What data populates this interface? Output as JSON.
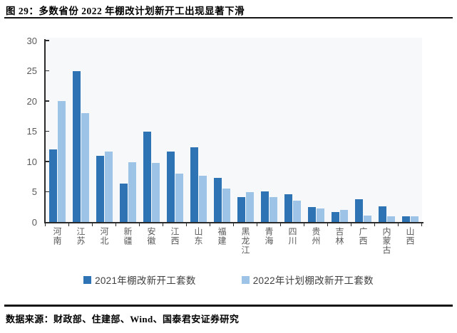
{
  "header": {
    "title": "图 29：多数省份 2022 年棚改计划新开工出现显著下滑"
  },
  "footer": {
    "source": "数据来源：财政部、住建部、Wind、国泰君安证券研究"
  },
  "colors": {
    "series_2021": "#2e74b5",
    "series_2022": "#9dc3e6",
    "plot_background": "#f7f8fa",
    "axis": "#2b2b2b",
    "tick_label": "#595959",
    "rule": "#141414"
  },
  "chart_data": {
    "type": "bar",
    "title": "",
    "xlabel": "",
    "ylabel": "",
    "ylim": [
      0,
      30
    ],
    "yticks": [
      0,
      5,
      10,
      15,
      20,
      25,
      30
    ],
    "grid": false,
    "legend_position": "bottom",
    "categories": [
      "河南",
      "江苏",
      "河北",
      "新疆",
      "安徽",
      "江西",
      "山东",
      "福建",
      "黑龙江",
      "青海",
      "四川",
      "贵州",
      "吉林",
      "广西",
      "内蒙古",
      "山西"
    ],
    "series": [
      {
        "name": "2021年棚改新开工套数",
        "color": "#2e74b5",
        "values": [
          12.0,
          25.0,
          11.0,
          6.4,
          15.0,
          11.6,
          12.4,
          7.3,
          4.1,
          5.1,
          4.6,
          2.5,
          1.6,
          3.8,
          2.6,
          1.0
        ]
      },
      {
        "name": "2022年计划棚改新开工套数",
        "color": "#9dc3e6",
        "values": [
          20.0,
          18.0,
          11.7,
          9.9,
          9.8,
          8.0,
          7.7,
          5.5,
          5.0,
          4.1,
          3.5,
          2.2,
          2.0,
          1.1,
          1.0,
          1.0
        ]
      }
    ]
  }
}
